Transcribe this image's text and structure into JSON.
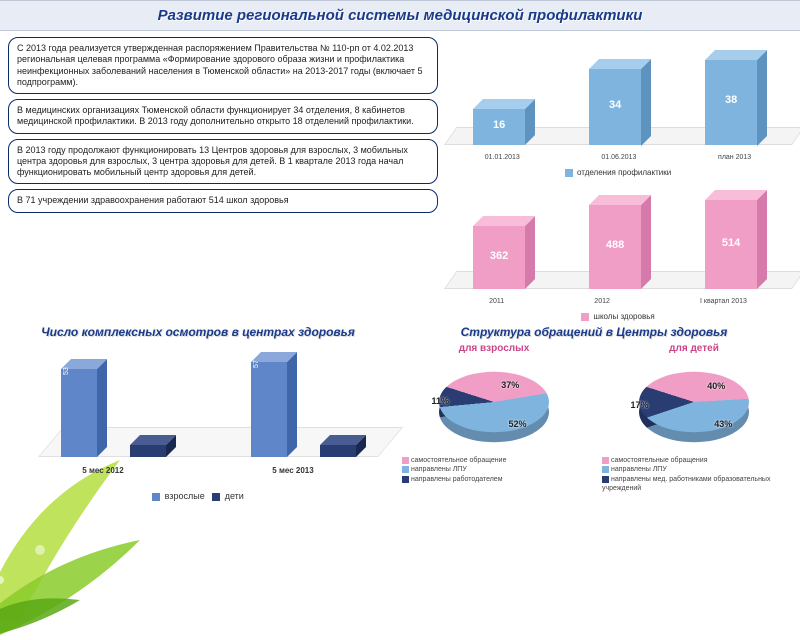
{
  "title": "Развитие региональной системы медицинской профилактики",
  "boxes": [
    "С 2013 года реализуется утвержденная распоряжением Правительства № 110-рп от 4.02.2013 региональная целевая программа «Формирование здорового образа жизни и профилактика неинфекционных заболеваний населения в Тюменской области» на 2013-2017 годы (включает 5 подпрограмм).",
    "В медицинских организациях Тюменской области функционирует 34 отделения, 8 кабинетов медицинской профилактики. В 2013 году дополнительно открыто 18 отделений профилактики.",
    "В 2013 году продолжают функционировать 13 Центров здоровья для взрослых, 3 мобильных центра здоровья для взрослых, 3 центра здоровья для детей. В 1 квартале 2013 года начал функционировать мобильный центр здоровья для детей.",
    "В 71 учреждении здравоохранения работают 514 школ здоровья"
  ],
  "dept_chart": {
    "type": "bar",
    "categories": [
      "01.01.2013",
      "01.06.2013",
      "план 2013"
    ],
    "values": [
      16,
      34,
      38
    ],
    "max": 40,
    "color_front": "#7fb4df",
    "color_top": "#a6cdeb",
    "color_side": "#5e93c0",
    "legend": "отделения профилактики"
  },
  "schools_chart": {
    "type": "bar",
    "categories": [
      "2011",
      "2012",
      "I квартал 2013"
    ],
    "values": [
      362,
      488,
      514
    ],
    "max": 520,
    "color_front": "#f19ec6",
    "color_top": "#f7bdd9",
    "color_side": "#d57aaa",
    "legend": "школы здоровья"
  },
  "exams_chart": {
    "type": "grouped-bar",
    "title": "Число комплексных осмотров в центрах здоровья",
    "categories": [
      "5 мес 2012",
      "5 мес 2013"
    ],
    "series": [
      {
        "name": "взрослые",
        "values": [
          53,
          57
        ],
        "display": [
          "53",
          "57"
        ],
        "front": "#5f86c8",
        "top": "#8aa8da",
        "side": "#3f66a8"
      },
      {
        "name": "дети",
        "values": [
          7.3,
          7.4
        ],
        "display": [
          "7,3",
          "7,4"
        ],
        "front": "#2a3d73",
        "top": "#4a5d93",
        "side": "#18284e"
      }
    ],
    "max": 60
  },
  "pies": {
    "title": "Структура обращений в Центры здоровья",
    "adults": {
      "subtitle": "для взрослых",
      "slices": [
        {
          "label": "самостоятельное обращение",
          "value": 37,
          "color": "#f19ec6"
        },
        {
          "label": "направлены ЛПУ",
          "value": 52,
          "color": "#7fb4df"
        },
        {
          "label": "направлены работодателем",
          "value": 11,
          "color": "#2a3d73"
        }
      ]
    },
    "kids": {
      "subtitle": "для детей",
      "slices": [
        {
          "label": "самостоятельные обращения",
          "value": 40,
          "color": "#f19ec6"
        },
        {
          "label": "направлены ЛПУ",
          "value": 43,
          "color": "#7fb4df"
        },
        {
          "label": "направлены мед. работниками образовательных учреждений",
          "value": 17,
          "color": "#2a3d73"
        }
      ]
    }
  },
  "fonts": {
    "title_pt": 15,
    "box_pt": 9,
    "sec_pt": 12
  }
}
